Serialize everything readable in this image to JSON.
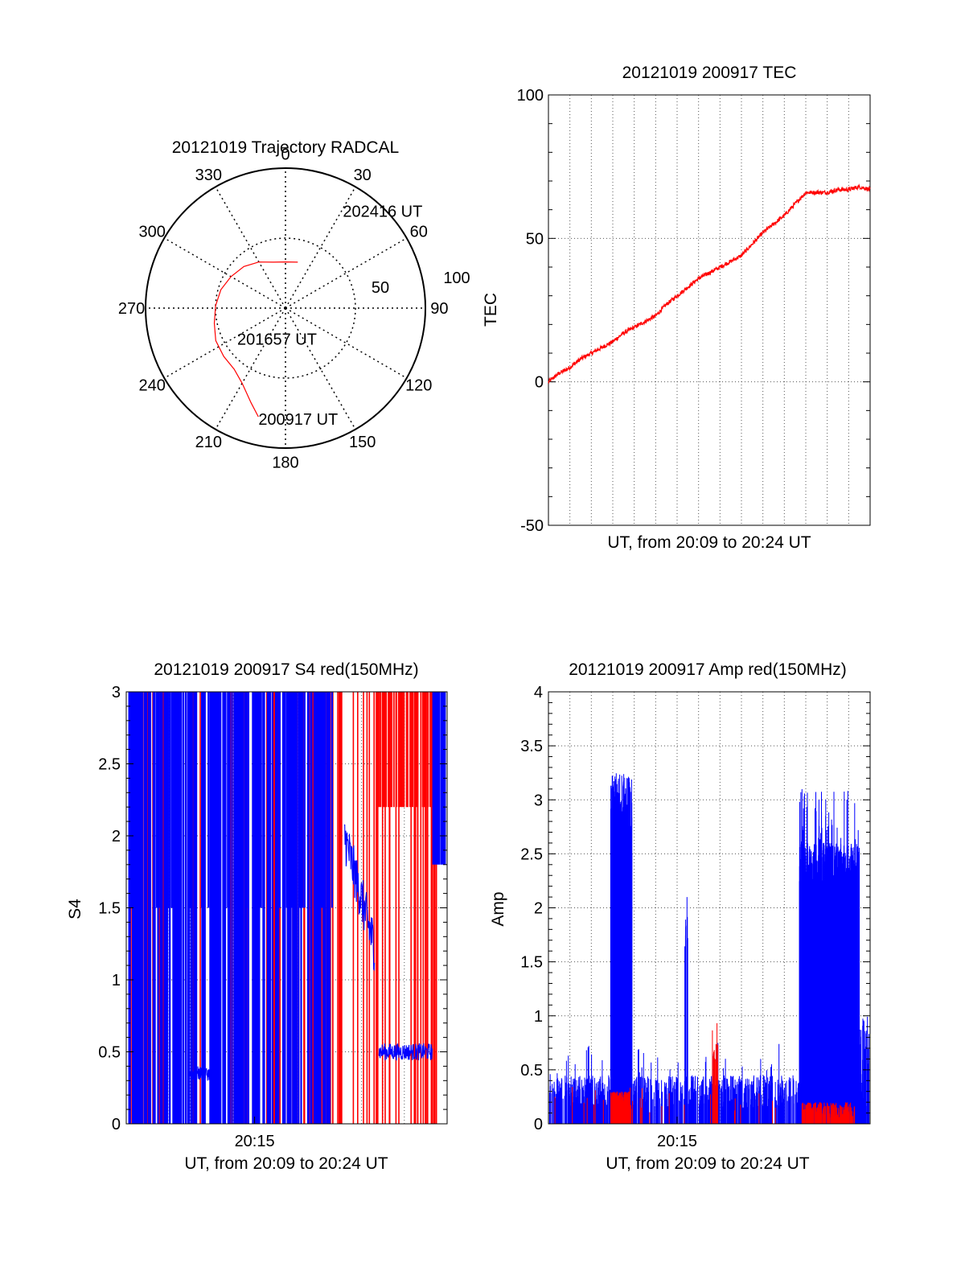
{
  "chart_data": [
    {
      "type": "polar",
      "title": "20121019 Trajectory RADCAL",
      "azimuth_labels": [
        "0",
        "30",
        "60",
        "90",
        "120",
        "150",
        "180",
        "210",
        "240",
        "270",
        "300",
        "330"
      ],
      "radius_labels": [
        "50",
        "100"
      ],
      "rlim": [
        0,
        100
      ],
      "grid": true,
      "series": [
        {
          "color": "#ff0000",
          "points": [
            [
              194,
              80
            ],
            [
              200,
              72
            ],
            [
              210,
              62
            ],
            [
              220,
              57
            ],
            [
              232,
              56
            ],
            [
              245,
              55
            ],
            [
              258,
              52
            ],
            [
              272,
              50
            ],
            [
              286,
              48
            ],
            [
              300,
              45
            ],
            [
              315,
              42
            ],
            [
              330,
              38
            ],
            [
              345,
              34
            ],
            [
              360,
              33
            ],
            [
              375,
              34
            ]
          ]
        }
      ],
      "annotations": [
        {
          "text": "200917 UT",
          "az": 194,
          "r": 80
        },
        {
          "text": "201657 UT",
          "az": 230,
          "r": 45
        },
        {
          "text": "202416 UT",
          "az": 30,
          "r": 82
        }
      ]
    },
    {
      "type": "line",
      "title": "20121019 200917 TEC",
      "xlabel": "UT, from 20:09 to 20:24 UT",
      "ylabel": "TEC",
      "xlim": [
        0,
        15
      ],
      "ylim": [
        -50,
        100
      ],
      "yticks": [
        "100",
        "50",
        "0",
        "-50"
      ],
      "grid": true,
      "series": [
        {
          "color": "#ff0000",
          "x": [
            0,
            0.5,
            1,
            1.5,
            2,
            2.5,
            3,
            3.5,
            4,
            4.5,
            5,
            5.5,
            6,
            6.5,
            7,
            7.5,
            8,
            8.5,
            9,
            9.5,
            10,
            10.5,
            11,
            11.5,
            12,
            12.5,
            13,
            13.5,
            14,
            14.5,
            15
          ],
          "y": [
            0,
            3,
            5,
            8,
            10,
            12,
            14,
            17,
            19,
            21,
            23,
            27,
            30,
            33,
            36,
            38,
            40,
            42,
            44,
            48,
            52,
            55,
            58,
            62,
            66,
            66,
            66,
            67,
            67,
            68,
            67
          ]
        }
      ]
    },
    {
      "type": "line",
      "title": "20121019 200917 S4 red(150MHz)",
      "xlabel": "UT, from 20:09 to 20:24 UT",
      "ylabel": "S4",
      "xlim": [
        0,
        15
      ],
      "ylim": [
        0,
        3
      ],
      "xticks": [
        {
          "value": 6,
          "label": "20:15"
        }
      ],
      "yticks": [
        "3",
        "2.5",
        "2",
        "1.5",
        "1",
        "0.5",
        "0"
      ],
      "grid": true,
      "series": [
        {
          "color": "#ff0000",
          "description": "dense vertical spikes 0–3 throughout; sparse in mid section"
        },
        {
          "color": "#0000ff",
          "description": "dense spikes 0–3 from 0 to 9.8 min; ~0.35 at 3.0–4.0 min; ~1.3–2.2 at 10.2–11.6 min; ~0.5 at 11.8–14.3 min"
        }
      ]
    },
    {
      "type": "line",
      "title": "20121019 200917 Amp red(150MHz)",
      "xlabel": "UT, from 20:09 to 20:24 UT",
      "ylabel": "Amp",
      "xlim": [
        0,
        15
      ],
      "ylim": [
        0,
        4
      ],
      "xticks": [
        {
          "value": 6,
          "label": "20:15"
        }
      ],
      "yticks": [
        "4",
        "3.5",
        "3",
        "2.5",
        "2",
        "1.5",
        "1",
        "0.5",
        "0"
      ],
      "grid": true,
      "series": [
        {
          "color": "#0000ff",
          "description": "baseline ~0.2–0.4; burst to ~3.2 at 2.9–3.9 min; spike ~2.1 at 6.4 min; burst ~2–3.1 at 11.7–14.5 min"
        },
        {
          "color": "#ff0000",
          "description": "mostly near 0–0.3; ~0.3 at 2.9–3.8 min; ~0.95 at 7.8 min; ~0.2 at 11.8–14.3 min"
        }
      ]
    }
  ]
}
